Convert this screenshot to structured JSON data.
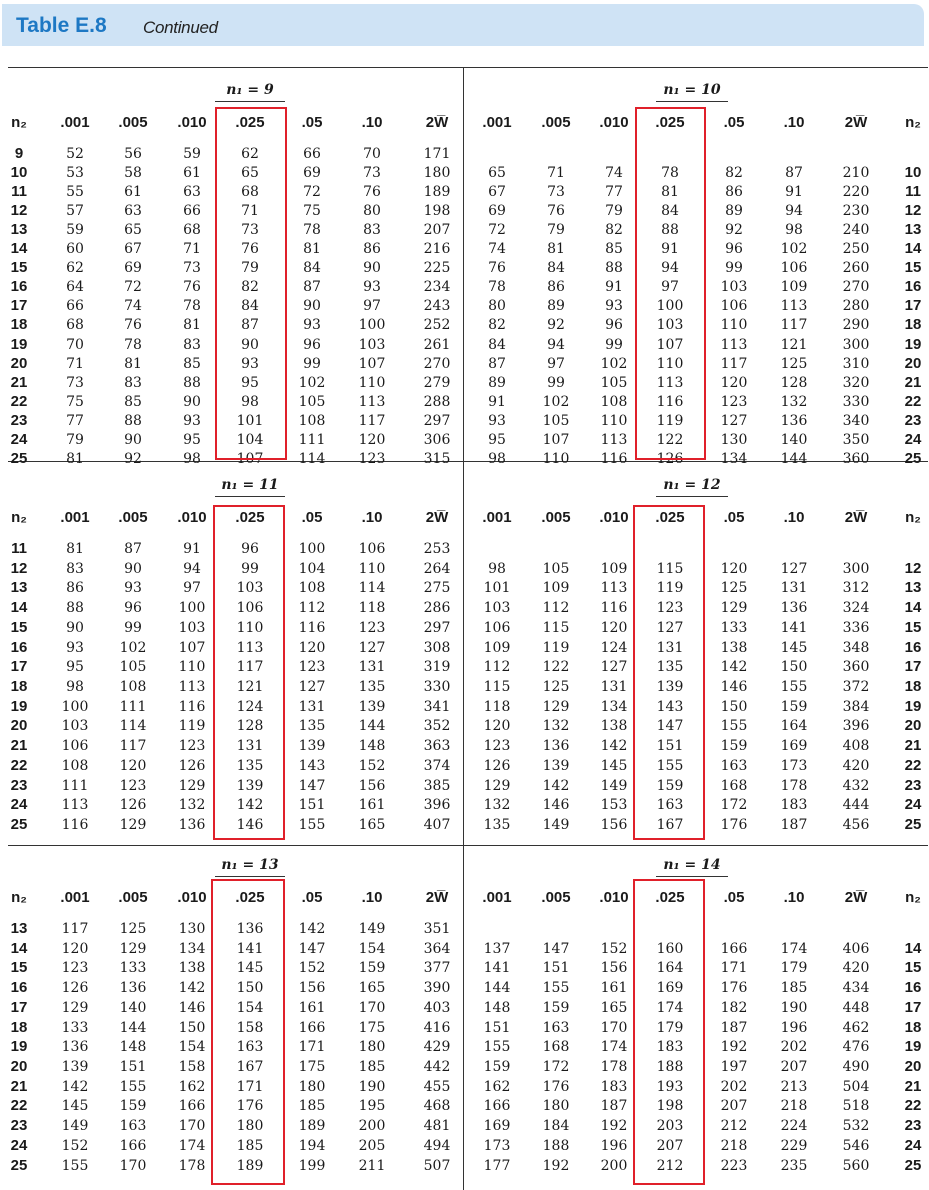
{
  "header": {
    "title": "Table E.8",
    "subtitle": "Continued"
  },
  "columns": [
    ".001",
    ".005",
    ".010",
    ".025",
    ".05",
    ".10",
    "2W̅"
  ],
  "n2_label": "n₂",
  "blocks": [
    {
      "title": "n₁ = 9",
      "rows": [
        {
          "n2": "9",
          "v": [
            "52",
            "56",
            "59",
            "62",
            "66",
            "70",
            "171"
          ]
        },
        {
          "n2": "10",
          "v": [
            "53",
            "58",
            "61",
            "65",
            "69",
            "73",
            "180"
          ]
        },
        {
          "n2": "11",
          "v": [
            "55",
            "61",
            "63",
            "68",
            "72",
            "76",
            "189"
          ]
        },
        {
          "n2": "12",
          "v": [
            "57",
            "63",
            "66",
            "71",
            "75",
            "80",
            "198"
          ]
        },
        {
          "n2": "13",
          "v": [
            "59",
            "65",
            "68",
            "73",
            "78",
            "83",
            "207"
          ]
        },
        {
          "n2": "14",
          "v": [
            "60",
            "67",
            "71",
            "76",
            "81",
            "86",
            "216"
          ]
        },
        {
          "n2": "15",
          "v": [
            "62",
            "69",
            "73",
            "79",
            "84",
            "90",
            "225"
          ]
        },
        {
          "n2": "16",
          "v": [
            "64",
            "72",
            "76",
            "82",
            "87",
            "93",
            "234"
          ]
        },
        {
          "n2": "17",
          "v": [
            "66",
            "74",
            "78",
            "84",
            "90",
            "97",
            "243"
          ]
        },
        {
          "n2": "18",
          "v": [
            "68",
            "76",
            "81",
            "87",
            "93",
            "100",
            "252"
          ]
        },
        {
          "n2": "19",
          "v": [
            "70",
            "78",
            "83",
            "90",
            "96",
            "103",
            "261"
          ]
        },
        {
          "n2": "20",
          "v": [
            "71",
            "81",
            "85",
            "93",
            "99",
            "107",
            "270"
          ]
        },
        {
          "n2": "21",
          "v": [
            "73",
            "83",
            "88",
            "95",
            "102",
            "110",
            "279"
          ]
        },
        {
          "n2": "22",
          "v": [
            "75",
            "85",
            "90",
            "98",
            "105",
            "113",
            "288"
          ]
        },
        {
          "n2": "23",
          "v": [
            "77",
            "88",
            "93",
            "101",
            "108",
            "117",
            "297"
          ]
        },
        {
          "n2": "24",
          "v": [
            "79",
            "90",
            "95",
            "104",
            "111",
            "120",
            "306"
          ]
        },
        {
          "n2": "25",
          "v": [
            "81",
            "92",
            "98",
            "107",
            "114",
            "123",
            "315"
          ]
        }
      ]
    },
    {
      "title": "n₁ = 10",
      "rows": [
        {
          "n2": "10",
          "v": [
            "65",
            "71",
            "74",
            "78",
            "82",
            "87",
            "210"
          ]
        },
        {
          "n2": "11",
          "v": [
            "67",
            "73",
            "77",
            "81",
            "86",
            "91",
            "220"
          ]
        },
        {
          "n2": "12",
          "v": [
            "69",
            "76",
            "79",
            "84",
            "89",
            "94",
            "230"
          ]
        },
        {
          "n2": "13",
          "v": [
            "72",
            "79",
            "82",
            "88",
            "92",
            "98",
            "240"
          ]
        },
        {
          "n2": "14",
          "v": [
            "74",
            "81",
            "85",
            "91",
            "96",
            "102",
            "250"
          ]
        },
        {
          "n2": "15",
          "v": [
            "76",
            "84",
            "88",
            "94",
            "99",
            "106",
            "260"
          ]
        },
        {
          "n2": "16",
          "v": [
            "78",
            "86",
            "91",
            "97",
            "103",
            "109",
            "270"
          ]
        },
        {
          "n2": "17",
          "v": [
            "80",
            "89",
            "93",
            "100",
            "106",
            "113",
            "280"
          ]
        },
        {
          "n2": "18",
          "v": [
            "82",
            "92",
            "96",
            "103",
            "110",
            "117",
            "290"
          ]
        },
        {
          "n2": "19",
          "v": [
            "84",
            "94",
            "99",
            "107",
            "113",
            "121",
            "300"
          ]
        },
        {
          "n2": "20",
          "v": [
            "87",
            "97",
            "102",
            "110",
            "117",
            "125",
            "310"
          ]
        },
        {
          "n2": "21",
          "v": [
            "89",
            "99",
            "105",
            "113",
            "120",
            "128",
            "320"
          ]
        },
        {
          "n2": "22",
          "v": [
            "91",
            "102",
            "108",
            "116",
            "123",
            "132",
            "330"
          ]
        },
        {
          "n2": "23",
          "v": [
            "93",
            "105",
            "110",
            "119",
            "127",
            "136",
            "340"
          ]
        },
        {
          "n2": "24",
          "v": [
            "95",
            "107",
            "113",
            "122",
            "130",
            "140",
            "350"
          ]
        },
        {
          "n2": "25",
          "v": [
            "98",
            "110",
            "116",
            "126",
            "134",
            "144",
            "360"
          ]
        }
      ]
    },
    {
      "title": "n₁ = 11",
      "rows": [
        {
          "n2": "11",
          "v": [
            "81",
            "87",
            "91",
            "96",
            "100",
            "106",
            "253"
          ]
        },
        {
          "n2": "12",
          "v": [
            "83",
            "90",
            "94",
            "99",
            "104",
            "110",
            "264"
          ]
        },
        {
          "n2": "13",
          "v": [
            "86",
            "93",
            "97",
            "103",
            "108",
            "114",
            "275"
          ]
        },
        {
          "n2": "14",
          "v": [
            "88",
            "96",
            "100",
            "106",
            "112",
            "118",
            "286"
          ]
        },
        {
          "n2": "15",
          "v": [
            "90",
            "99",
            "103",
            "110",
            "116",
            "123",
            "297"
          ]
        },
        {
          "n2": "16",
          "v": [
            "93",
            "102",
            "107",
            "113",
            "120",
            "127",
            "308"
          ]
        },
        {
          "n2": "17",
          "v": [
            "95",
            "105",
            "110",
            "117",
            "123",
            "131",
            "319"
          ]
        },
        {
          "n2": "18",
          "v": [
            "98",
            "108",
            "113",
            "121",
            "127",
            "135",
            "330"
          ]
        },
        {
          "n2": "19",
          "v": [
            "100",
            "111",
            "116",
            "124",
            "131",
            "139",
            "341"
          ]
        },
        {
          "n2": "20",
          "v": [
            "103",
            "114",
            "119",
            "128",
            "135",
            "144",
            "352"
          ]
        },
        {
          "n2": "21",
          "v": [
            "106",
            "117",
            "123",
            "131",
            "139",
            "148",
            "363"
          ]
        },
        {
          "n2": "22",
          "v": [
            "108",
            "120",
            "126",
            "135",
            "143",
            "152",
            "374"
          ]
        },
        {
          "n2": "23",
          "v": [
            "111",
            "123",
            "129",
            "139",
            "147",
            "156",
            "385"
          ]
        },
        {
          "n2": "24",
          "v": [
            "113",
            "126",
            "132",
            "142",
            "151",
            "161",
            "396"
          ]
        },
        {
          "n2": "25",
          "v": [
            "116",
            "129",
            "136",
            "146",
            "155",
            "165",
            "407"
          ]
        }
      ]
    },
    {
      "title": "n₁ = 12",
      "rows": [
        {
          "n2": "12",
          "v": [
            "98",
            "105",
            "109",
            "115",
            "120",
            "127",
            "300"
          ]
        },
        {
          "n2": "13",
          "v": [
            "101",
            "109",
            "113",
            "119",
            "125",
            "131",
            "312"
          ]
        },
        {
          "n2": "14",
          "v": [
            "103",
            "112",
            "116",
            "123",
            "129",
            "136",
            "324"
          ]
        },
        {
          "n2": "15",
          "v": [
            "106",
            "115",
            "120",
            "127",
            "133",
            "141",
            "336"
          ]
        },
        {
          "n2": "16",
          "v": [
            "109",
            "119",
            "124",
            "131",
            "138",
            "145",
            "348"
          ]
        },
        {
          "n2": "17",
          "v": [
            "112",
            "122",
            "127",
            "135",
            "142",
            "150",
            "360"
          ]
        },
        {
          "n2": "18",
          "v": [
            "115",
            "125",
            "131",
            "139",
            "146",
            "155",
            "372"
          ]
        },
        {
          "n2": "19",
          "v": [
            "118",
            "129",
            "134",
            "143",
            "150",
            "159",
            "384"
          ]
        },
        {
          "n2": "20",
          "v": [
            "120",
            "132",
            "138",
            "147",
            "155",
            "164",
            "396"
          ]
        },
        {
          "n2": "21",
          "v": [
            "123",
            "136",
            "142",
            "151",
            "159",
            "169",
            "408"
          ]
        },
        {
          "n2": "22",
          "v": [
            "126",
            "139",
            "145",
            "155",
            "163",
            "173",
            "420"
          ]
        },
        {
          "n2": "23",
          "v": [
            "129",
            "142",
            "149",
            "159",
            "168",
            "178",
            "432"
          ]
        },
        {
          "n2": "24",
          "v": [
            "132",
            "146",
            "153",
            "163",
            "172",
            "183",
            "444"
          ]
        },
        {
          "n2": "25",
          "v": [
            "135",
            "149",
            "156",
            "167",
            "176",
            "187",
            "456"
          ]
        }
      ]
    },
    {
      "title": "n₁ = 13",
      "rows": [
        {
          "n2": "13",
          "v": [
            "117",
            "125",
            "130",
            "136",
            "142",
            "149",
            "351"
          ]
        },
        {
          "n2": "14",
          "v": [
            "120",
            "129",
            "134",
            "141",
            "147",
            "154",
            "364"
          ]
        },
        {
          "n2": "15",
          "v": [
            "123",
            "133",
            "138",
            "145",
            "152",
            "159",
            "377"
          ]
        },
        {
          "n2": "16",
          "v": [
            "126",
            "136",
            "142",
            "150",
            "156",
            "165",
            "390"
          ]
        },
        {
          "n2": "17",
          "v": [
            "129",
            "140",
            "146",
            "154",
            "161",
            "170",
            "403"
          ]
        },
        {
          "n2": "18",
          "v": [
            "133",
            "144",
            "150",
            "158",
            "166",
            "175",
            "416"
          ]
        },
        {
          "n2": "19",
          "v": [
            "136",
            "148",
            "154",
            "163",
            "171",
            "180",
            "429"
          ]
        },
        {
          "n2": "20",
          "v": [
            "139",
            "151",
            "158",
            "167",
            "175",
            "185",
            "442"
          ]
        },
        {
          "n2": "21",
          "v": [
            "142",
            "155",
            "162",
            "171",
            "180",
            "190",
            "455"
          ]
        },
        {
          "n2": "22",
          "v": [
            "145",
            "159",
            "166",
            "176",
            "185",
            "195",
            "468"
          ]
        },
        {
          "n2": "23",
          "v": [
            "149",
            "163",
            "170",
            "180",
            "189",
            "200",
            "481"
          ]
        },
        {
          "n2": "24",
          "v": [
            "152",
            "166",
            "174",
            "185",
            "194",
            "205",
            "494"
          ]
        },
        {
          "n2": "25",
          "v": [
            "155",
            "170",
            "178",
            "189",
            "199",
            "211",
            "507"
          ]
        }
      ]
    },
    {
      "title": "n₁ = 14",
      "rows": [
        {
          "n2": "14",
          "v": [
            "137",
            "147",
            "152",
            "160",
            "166",
            "174",
            "406"
          ]
        },
        {
          "n2": "15",
          "v": [
            "141",
            "151",
            "156",
            "164",
            "171",
            "179",
            "420"
          ]
        },
        {
          "n2": "16",
          "v": [
            "144",
            "155",
            "161",
            "169",
            "176",
            "185",
            "434"
          ]
        },
        {
          "n2": "17",
          "v": [
            "148",
            "159",
            "165",
            "174",
            "182",
            "190",
            "448"
          ]
        },
        {
          "n2": "18",
          "v": [
            "151",
            "163",
            "170",
            "179",
            "187",
            "196",
            "462"
          ]
        },
        {
          "n2": "19",
          "v": [
            "155",
            "168",
            "174",
            "183",
            "192",
            "202",
            "476"
          ]
        },
        {
          "n2": "20",
          "v": [
            "159",
            "172",
            "178",
            "188",
            "197",
            "207",
            "490"
          ]
        },
        {
          "n2": "21",
          "v": [
            "162",
            "176",
            "183",
            "193",
            "202",
            "213",
            "504"
          ]
        },
        {
          "n2": "22",
          "v": [
            "166",
            "180",
            "187",
            "198",
            "207",
            "218",
            "518"
          ]
        },
        {
          "n2": "23",
          "v": [
            "169",
            "184",
            "192",
            "203",
            "212",
            "224",
            "532"
          ]
        },
        {
          "n2": "24",
          "v": [
            "173",
            "188",
            "196",
            "207",
            "218",
            "229",
            "546"
          ]
        },
        {
          "n2": "25",
          "v": [
            "177",
            "192",
            "200",
            "212",
            "223",
            "235",
            "560"
          ]
        }
      ]
    }
  ]
}
